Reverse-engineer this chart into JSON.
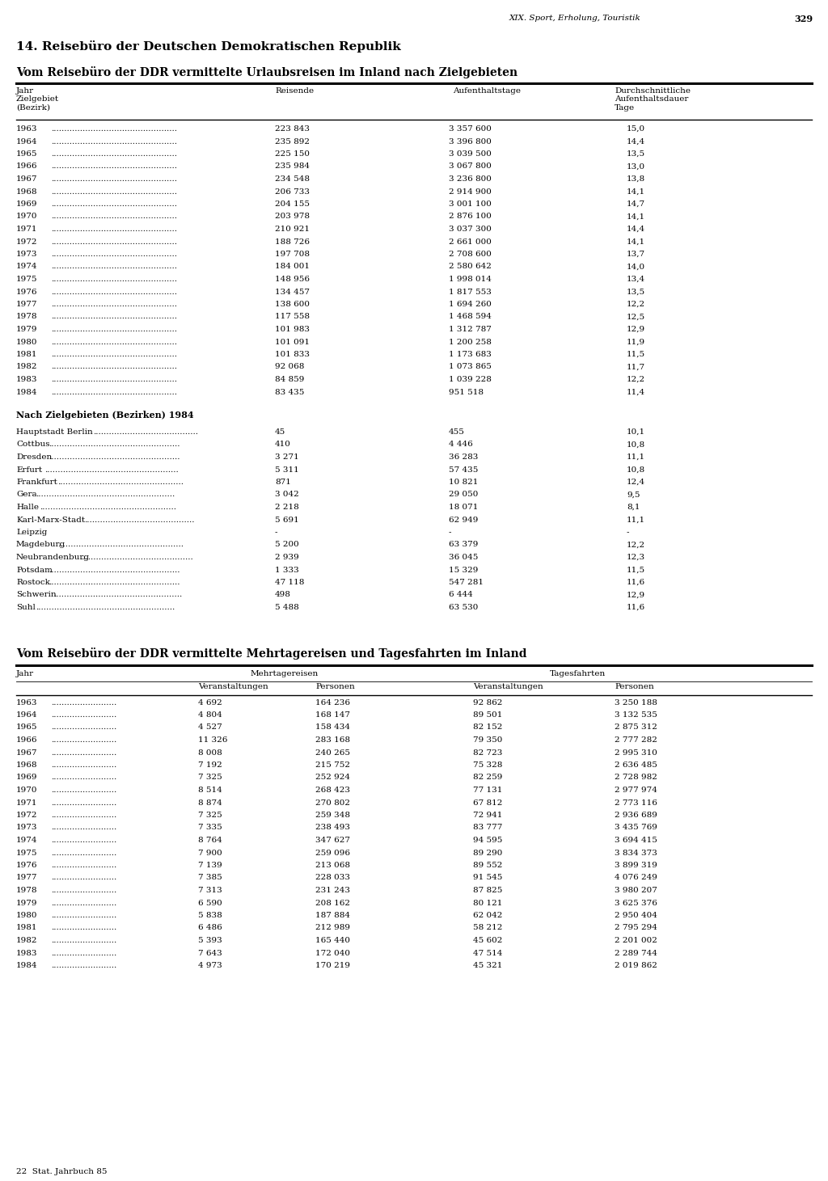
{
  "page_header": "XIX. Sport, Erholung, Touristik",
  "page_number": "329",
  "section_title": "14. Reisebüro der Deutschen Demokratischen Republik",
  "table1_title": "Vom Reisebüro der DDR vermittelte Urlaubsreisen im Inland nach Zielgebieten",
  "table1_years": [
    [
      "1963",
      "223 843",
      "3 357 600",
      "15,0"
    ],
    [
      "1964",
      "235 892",
      "3 396 800",
      "14,4"
    ],
    [
      "1965",
      "225 150",
      "3 039 500",
      "13,5"
    ],
    [
      "1966",
      "235 984",
      "3 067 800",
      "13,0"
    ],
    [
      "1967",
      "234 548",
      "3 236 800",
      "13,8"
    ],
    [
      "1968",
      "206 733",
      "2 914 900",
      "14,1"
    ],
    [
      "1969",
      "204 155",
      "3 001 100",
      "14,7"
    ],
    [
      "1970",
      "203 978",
      "2 876 100",
      "14,1"
    ],
    [
      "1971",
      "210 921",
      "3 037 300",
      "14,4"
    ],
    [
      "1972",
      "188 726",
      "2 661 000",
      "14,1"
    ],
    [
      "1973",
      "197 708",
      "2 708 600",
      "13,7"
    ],
    [
      "1974",
      "184 001",
      "2 580 642",
      "14,0"
    ],
    [
      "1975",
      "148 956",
      "1 998 014",
      "13,4"
    ],
    [
      "1976",
      "134 457",
      "1 817 553",
      "13,5"
    ],
    [
      "1977",
      "138 600",
      "1 694 260",
      "12,2"
    ],
    [
      "1978",
      "117 558",
      "1 468 594",
      "12,5"
    ],
    [
      "1979",
      "101 983",
      "1 312 787",
      "12,9"
    ],
    [
      "1980",
      "101 091",
      "1 200 258",
      "11,9"
    ],
    [
      "1981",
      "101 833",
      "1 173 683",
      "11,5"
    ],
    [
      "1982",
      "92 068",
      "1 073 865",
      "11,7"
    ],
    [
      "1983",
      "84 859",
      "1 039 228",
      "12,2"
    ],
    [
      "1984",
      "83 435",
      "951 518",
      "11,4"
    ]
  ],
  "table1_bezirk_header": "Nach Zielgebieten (Bezirken) 1984",
  "table1_bezirke": [
    [
      "Hauptstadt Berlin",
      "45",
      "455",
      "10,1"
    ],
    [
      "Cottbus",
      "410",
      "4 446",
      "10,8"
    ],
    [
      "Dresden",
      "3 271",
      "36 283",
      "11,1"
    ],
    [
      "Erfurt",
      "5 311",
      "57 435",
      "10,8"
    ],
    [
      "Frankfurt",
      "871",
      "10 821",
      "12,4"
    ],
    [
      "Gera",
      "3 042",
      "29 050",
      "9,5"
    ],
    [
      "Halle",
      "2 218",
      "18 071",
      "8,1"
    ],
    [
      "Karl-Marx-Stadt",
      "5 691",
      "62 949",
      "11,1"
    ],
    [
      "Leipzig",
      "-",
      "-",
      "-"
    ],
    [
      "Magdeburg",
      "5 200",
      "63 379",
      "12,2"
    ],
    [
      "Neubrandenburg",
      "2 939",
      "36 045",
      "12,3"
    ],
    [
      "Potsdam",
      "1 333",
      "15 329",
      "11,5"
    ],
    [
      "Rostock",
      "47 118",
      "547 281",
      "11,6"
    ],
    [
      "Schwerin",
      "498",
      "6 444",
      "12,9"
    ],
    [
      "Suhl",
      "5 488",
      "63 530",
      "11,6"
    ]
  ],
  "table2_title": "Vom Reisebüro der DDR vermittelte Mehrtagereisen und Tagesfahrten im Inland",
  "table2_data": [
    [
      "1963",
      "4 692",
      "164 236",
      "92 862",
      "3 250 188"
    ],
    [
      "1964",
      "4 804",
      "168 147",
      "89 501",
      "3 132 535"
    ],
    [
      "1965",
      "4 527",
      "158 434",
      "82 152",
      "2 875 312"
    ],
    [
      "1966",
      "11 326",
      "283 168",
      "79 350",
      "2 777 282"
    ],
    [
      "1967",
      "8 008",
      "240 265",
      "82 723",
      "2 995 310"
    ],
    [
      "1968",
      "7 192",
      "215 752",
      "75 328",
      "2 636 485"
    ],
    [
      "1969",
      "7 325",
      "252 924",
      "82 259",
      "2 728 982"
    ],
    [
      "1970",
      "8 514",
      "268 423",
      "77 131",
      "2 977 974"
    ],
    [
      "1971",
      "8 874",
      "270 802",
      "67 812",
      "2 773 116"
    ],
    [
      "1972",
      "7 325",
      "259 348",
      "72 941",
      "2 936 689"
    ],
    [
      "1973",
      "7 335",
      "238 493",
      "83 777",
      "3 435 769"
    ],
    [
      "1974",
      "8 764",
      "347 627",
      "94 595",
      "3 694 415"
    ],
    [
      "1975",
      "7 900",
      "259 096",
      "89 290",
      "3 834 373"
    ],
    [
      "1976",
      "7 139",
      "213 068",
      "89 552",
      "3 899 319"
    ],
    [
      "1977",
      "7 385",
      "228 033",
      "91 545",
      "4 076 249"
    ],
    [
      "1978",
      "7 313",
      "231 243",
      "87 825",
      "3 980 207"
    ],
    [
      "1979",
      "6 590",
      "208 162",
      "80 121",
      "3 625 376"
    ],
    [
      "1980",
      "5 838",
      "187 884",
      "62 042",
      "2 950 404"
    ],
    [
      "1981",
      "6 486",
      "212 989",
      "58 212",
      "2 795 294"
    ],
    [
      "1982",
      "5 393",
      "165 440",
      "45 602",
      "2 201 002"
    ],
    [
      "1983",
      "7 643",
      "172 040",
      "47 514",
      "2 289 744"
    ],
    [
      "1984",
      "4 973",
      "170 219",
      "45 321",
      "2 019 862"
    ]
  ],
  "footer": "22  Stat. Jahrbuch 85"
}
